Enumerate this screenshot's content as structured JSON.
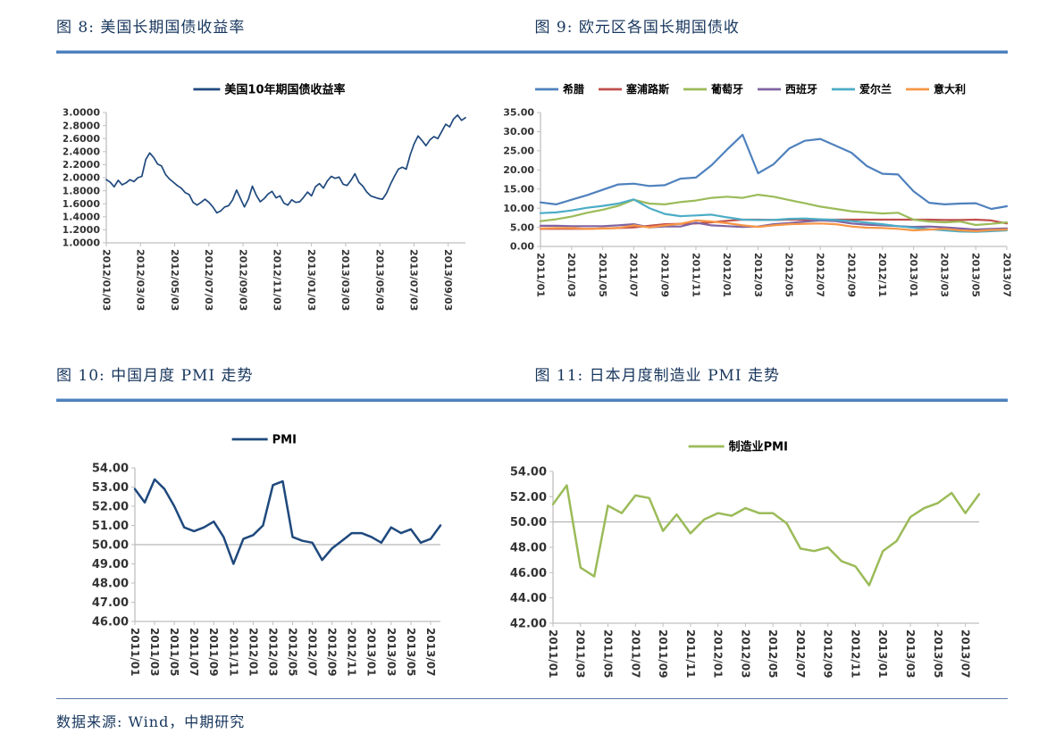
{
  "figures": [
    {
      "title": "图 8: 美国长期国债收益率"
    },
    {
      "title": "图 9: 欧元区各国长期国债收"
    },
    {
      "title": "图 10: 中国月度 PMI 走势"
    },
    {
      "title": "图 11: 日本月度制造业 PMI 走势"
    }
  ],
  "source": {
    "text": "数据来源: Wind，中期研究"
  },
  "colors": {
    "title_navy": "#17365D",
    "rule_blue": "#4F81BD",
    "us_line": "#1F497D",
    "greece": "#4F81BD",
    "cyprus": "#C0504D",
    "portugal": "#9BBB59",
    "spain": "#8064A2",
    "ireland": "#4BACC6",
    "italy": "#F79646",
    "china_pmi": "#1F497D",
    "japan_pmi": "#9BBB59",
    "axis_gray": "#BFBFBF"
  },
  "chart_data": [
    {
      "type": "line",
      "title": "图 8: 美国长期国债收益率",
      "legend_position": "top",
      "xlabel": "",
      "ylabel": "",
      "ylim": [
        1.0,
        3.0
      ],
      "yticks": [
        "3.0000",
        "2.8000",
        "2.6000",
        "2.4000",
        "2.2000",
        "2.0000",
        "1.8000",
        "1.6000",
        "1.4000",
        "1.2000",
        "1.0000"
      ],
      "x_ticklabels": [
        "2012/01/03",
        "2012/03/03",
        "2012/05/03",
        "2012/07/03",
        "2012/09/03",
        "2012/11/03",
        "2013/01/03",
        "2013/03/03",
        "2013/05/03",
        "2013/07/03",
        "2013/09/03"
      ],
      "grid_y": null,
      "series": [
        {
          "name": "美国10年期国债收益率",
          "color": "#1F497D",
          "values": [
            1.97,
            1.93,
            1.86,
            1.96,
            1.89,
            1.92,
            1.97,
            1.94,
            2.0,
            2.02,
            2.28,
            2.38,
            2.31,
            2.21,
            2.18,
            2.05,
            1.98,
            1.93,
            1.88,
            1.84,
            1.77,
            1.74,
            1.62,
            1.58,
            1.62,
            1.67,
            1.62,
            1.55,
            1.46,
            1.49,
            1.55,
            1.57,
            1.66,
            1.81,
            1.68,
            1.55,
            1.67,
            1.87,
            1.73,
            1.63,
            1.68,
            1.75,
            1.79,
            1.69,
            1.72,
            1.61,
            1.58,
            1.66,
            1.62,
            1.63,
            1.7,
            1.78,
            1.72,
            1.86,
            1.91,
            1.84,
            1.95,
            2.02,
            1.99,
            2.01,
            1.9,
            1.88,
            1.96,
            2.06,
            1.93,
            1.87,
            1.78,
            1.72,
            1.7,
            1.68,
            1.67,
            1.76,
            1.9,
            2.02,
            2.13,
            2.16,
            2.13,
            2.35,
            2.52,
            2.64,
            2.57,
            2.49,
            2.58,
            2.63,
            2.6,
            2.71,
            2.82,
            2.78,
            2.9,
            2.96,
            2.88,
            2.92
          ]
        }
      ]
    },
    {
      "type": "line",
      "title": "图 9: 欧元区各国长期国债收",
      "legend_position": "top",
      "xlabel": "",
      "ylabel": "",
      "ylim": [
        0,
        35
      ],
      "yticks": [
        "35.00",
        "30.00",
        "25.00",
        "20.00",
        "15.00",
        "10.00",
        "5.00",
        "0.00"
      ],
      "x_ticklabels": [
        "2011/01",
        "2011/03",
        "2011/05",
        "2011/07",
        "2011/09",
        "2011/11",
        "2012/01",
        "2012/03",
        "2012/05",
        "2012/07",
        "2012/09",
        "2012/11",
        "2013/01",
        "2013/03",
        "2013/05",
        "2013/07"
      ],
      "grid_y": null,
      "series": [
        {
          "name": "希腊",
          "color": "#4F81BD",
          "values": [
            11.5,
            11.0,
            12.2,
            13.4,
            14.8,
            16.2,
            16.4,
            15.8,
            16.0,
            17.7,
            18.0,
            21.2,
            25.3,
            29.2,
            19.1,
            21.5,
            25.6,
            27.6,
            28.1,
            26.3,
            24.5,
            21.0,
            19.0,
            18.8,
            14.4,
            11.4,
            11.0,
            11.2,
            11.3,
            9.8,
            10.5
          ]
        },
        {
          "name": "塞浦路斯",
          "color": "#C0504D",
          "values": [
            4.6,
            4.6,
            4.6,
            4.6,
            4.7,
            4.8,
            5.0,
            5.4,
            5.8,
            5.9,
            6.0,
            6.3,
            6.7,
            7.0,
            7.0,
            6.9,
            7.0,
            7.0,
            7.0,
            7.0,
            7.0,
            7.0,
            7.0,
            7.0,
            7.0,
            7.0,
            6.9,
            6.9,
            7.0,
            6.8,
            6.0
          ]
        },
        {
          "name": "葡萄牙",
          "color": "#9BBB59",
          "values": [
            6.6,
            7.1,
            7.8,
            8.8,
            9.6,
            10.6,
            12.2,
            11.2,
            11.0,
            11.6,
            12.0,
            12.7,
            13.0,
            12.7,
            13.5,
            13.0,
            12.1,
            11.3,
            10.4,
            9.8,
            9.2,
            8.9,
            8.6,
            8.8,
            7.0,
            6.5,
            6.3,
            6.5,
            5.6,
            5.9,
            6.3
          ]
        },
        {
          "name": "西班牙",
          "color": "#8064A2",
          "values": [
            5.4,
            5.4,
            5.3,
            5.3,
            5.3,
            5.5,
            5.8,
            5.0,
            5.2,
            5.2,
            6.2,
            5.5,
            5.3,
            5.1,
            5.2,
            5.8,
            6.1,
            6.5,
            6.8,
            6.6,
            6.0,
            5.7,
            5.5,
            5.3,
            5.1,
            5.2,
            5.0,
            4.7,
            4.4,
            4.6,
            4.7
          ]
        },
        {
          "name": "爱尔兰",
          "color": "#4BACC6",
          "values": [
            8.7,
            8.9,
            9.4,
            10.1,
            10.6,
            11.2,
            12.3,
            10.0,
            8.5,
            7.9,
            8.1,
            8.3,
            7.6,
            7.0,
            6.9,
            6.9,
            7.2,
            7.3,
            7.1,
            6.9,
            6.6,
            6.2,
            5.8,
            5.3,
            4.9,
            4.5,
            4.2,
            3.9,
            3.8,
            4.0,
            4.2
          ]
        },
        {
          "name": "意大利",
          "color": "#F79646",
          "values": [
            4.7,
            4.8,
            4.8,
            4.6,
            4.7,
            4.8,
            5.5,
            5.0,
            5.5,
            5.9,
            6.8,
            6.5,
            6.1,
            5.5,
            5.1,
            5.5,
            5.8,
            5.9,
            6.0,
            5.8,
            5.2,
            4.9,
            4.8,
            4.6,
            4.2,
            4.4,
            4.6,
            4.2,
            4.0,
            4.3,
            4.4
          ]
        }
      ]
    },
    {
      "type": "line",
      "title": "图 10: 中国月度 PMI 走势",
      "legend_position": "top",
      "xlabel": "",
      "ylabel": "",
      "ylim": [
        46,
        54
      ],
      "yticks": [
        "54.00",
        "53.00",
        "52.00",
        "51.00",
        "50.00",
        "49.00",
        "48.00",
        "47.00",
        "46.00"
      ],
      "x_ticklabels": [
        "2011/01",
        "2011/03",
        "2011/05",
        "2011/07",
        "2011/09",
        "2011/11",
        "2012/01",
        "2012/03",
        "2012/05",
        "2012/07",
        "2012/09",
        "2012/11",
        "2013/01",
        "2013/03",
        "2013/05",
        "2013/07"
      ],
      "grid_y": 50,
      "series": [
        {
          "name": "PMI",
          "color": "#1F497D",
          "values": [
            52.9,
            52.2,
            53.4,
            52.9,
            52.0,
            50.9,
            50.7,
            50.9,
            51.2,
            50.4,
            49.0,
            50.3,
            50.5,
            51.0,
            53.1,
            53.3,
            50.4,
            50.2,
            50.1,
            49.2,
            49.8,
            50.2,
            50.6,
            50.6,
            50.4,
            50.1,
            50.9,
            50.6,
            50.8,
            50.1,
            50.3,
            51.0
          ]
        }
      ]
    },
    {
      "type": "line",
      "title": "图 11: 日本月度制造业 PMI 走势",
      "legend_position": "top",
      "xlabel": "",
      "ylabel": "",
      "ylim": [
        42,
        54
      ],
      "yticks": [
        "54.00",
        "52.00",
        "50.00",
        "48.00",
        "46.00",
        "44.00",
        "42.00"
      ],
      "x_ticklabels": [
        "2011/01",
        "2011/03",
        "2011/05",
        "2011/07",
        "2011/09",
        "2011/11",
        "2012/01",
        "2012/03",
        "2012/05",
        "2012/07",
        "2012/09",
        "2012/11",
        "2013/01",
        "2013/03",
        "2013/05",
        "2013/07"
      ],
      "grid_y": 50,
      "series": [
        {
          "name": "制造业PMI",
          "color": "#9BBB59",
          "values": [
            51.4,
            52.9,
            46.4,
            45.7,
            51.3,
            50.7,
            52.1,
            51.9,
            49.3,
            50.6,
            49.1,
            50.2,
            50.7,
            50.5,
            51.1,
            50.7,
            50.7,
            49.9,
            47.9,
            47.7,
            48.0,
            46.9,
            46.5,
            45.0,
            47.7,
            48.5,
            50.4,
            51.1,
            51.5,
            52.3,
            50.7,
            52.2
          ]
        }
      ]
    }
  ]
}
